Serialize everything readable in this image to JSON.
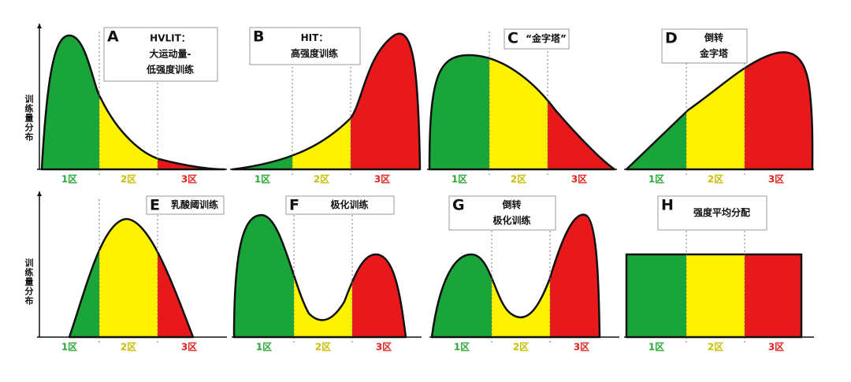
{
  "y_axis_label": "训练量分布",
  "panels": [
    {
      "letter": "A",
      "title_lines": [
        "HVLIT：",
        "大运动量-",
        "低强度训练"
      ],
      "zones": [
        "1区",
        "2区",
        "3区"
      ]
    },
    {
      "letter": "B",
      "title_lines": [
        "HIT：",
        "高强度训练"
      ],
      "zones": [
        "1区",
        "2区",
        "3区"
      ]
    },
    {
      "letter": "C",
      "title_lines": [
        "“金字塔”"
      ],
      "zones": [
        "1区",
        "2区",
        "3区"
      ]
    },
    {
      "letter": "D",
      "title_lines": [
        "倒转",
        "金字塔"
      ],
      "zones": [
        "1区",
        "2区",
        "3区"
      ]
    },
    {
      "letter": "E",
      "title_lines": [
        "乳酸阈训练"
      ],
      "zones": [
        "1区",
        "2区",
        "3区"
      ]
    },
    {
      "letter": "F",
      "title_lines": [
        "极化训练"
      ],
      "zones": [
        "1区",
        "2区",
        "3区"
      ]
    },
    {
      "letter": "G",
      "title_lines": [
        "倒转",
        "极化训练"
      ],
      "zones": [
        "1区",
        "2区",
        "3区"
      ]
    },
    {
      "letter": "H",
      "title_lines": [
        "强度平均分配"
      ],
      "zones": [
        "1区",
        "2区",
        "3区"
      ]
    }
  ]
}
